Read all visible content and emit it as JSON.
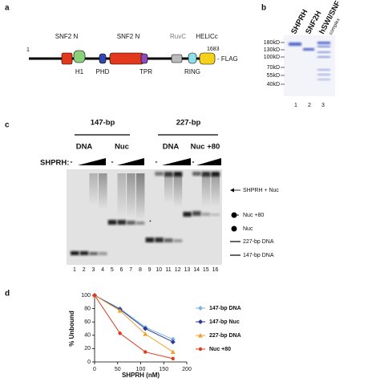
{
  "panel_labels": [
    "a",
    "b",
    "c",
    "d"
  ],
  "panel_a": {
    "start": "1",
    "end": "1683",
    "tag": "- FLAG",
    "above": [
      "SNF2 N",
      "SNF2 N",
      "RuvC",
      "HELICc"
    ],
    "below": [
      "H1",
      "PHD",
      "TPR",
      "RING"
    ]
  },
  "panel_b": {
    "lanes": [
      "SHPRH",
      "SNF2H",
      "hSWI/SNF"
    ],
    "lane_note": "complex",
    "markers": [
      "180kD",
      "130kD",
      "100kD",
      "70kD",
      "55kD",
      "40kD"
    ],
    "lane_numbers": [
      "1",
      "2",
      "3"
    ]
  },
  "panel_c": {
    "groups": [
      "147-bp",
      "227-bp"
    ],
    "conditions": [
      "DNA",
      "Nuc",
      "DNA",
      "Nuc +80"
    ],
    "titration_label": "SHPRH:",
    "minus": [
      "-",
      "-",
      "-",
      "-"
    ],
    "star": "*",
    "lane_numbers": [
      "1",
      "2",
      "3",
      "4",
      "5",
      "6",
      "7",
      "8",
      "9",
      "10",
      "11",
      "12",
      "13",
      "14",
      "15",
      "16"
    ],
    "annotations": [
      "SHPRH + Nuc",
      "Nuc +80",
      "Nuc",
      "227-bp DNA",
      "147-bp DNA"
    ]
  },
  "chart_data": {
    "type": "line",
    "xlabel": "SHPRH (nM)",
    "ylabel": "% Unbound",
    "x": [
      0,
      55,
      110,
      170
    ],
    "xlim": [
      0,
      200
    ],
    "xticks": [
      0,
      50,
      100,
      150,
      200
    ],
    "ylim": [
      0,
      100
    ],
    "yticks": [
      0,
      20,
      40,
      60,
      80,
      100
    ],
    "legend": "right",
    "series": [
      {
        "name": "147-bp DNA",
        "color": "#7ab4e2",
        "values": [
          100,
          80,
          52,
          34
        ]
      },
      {
        "name": "147-bp  Nuc",
        "color": "#2b3a9c",
        "values": [
          100,
          79,
          50,
          30
        ]
      },
      {
        "name": "227-bp DNA",
        "color": "#f0a22e",
        "values": [
          100,
          77,
          42,
          15
        ]
      },
      {
        "name": "Nuc +80",
        "color": "#e2391c",
        "values": [
          100,
          43,
          15,
          5
        ]
      }
    ]
  }
}
